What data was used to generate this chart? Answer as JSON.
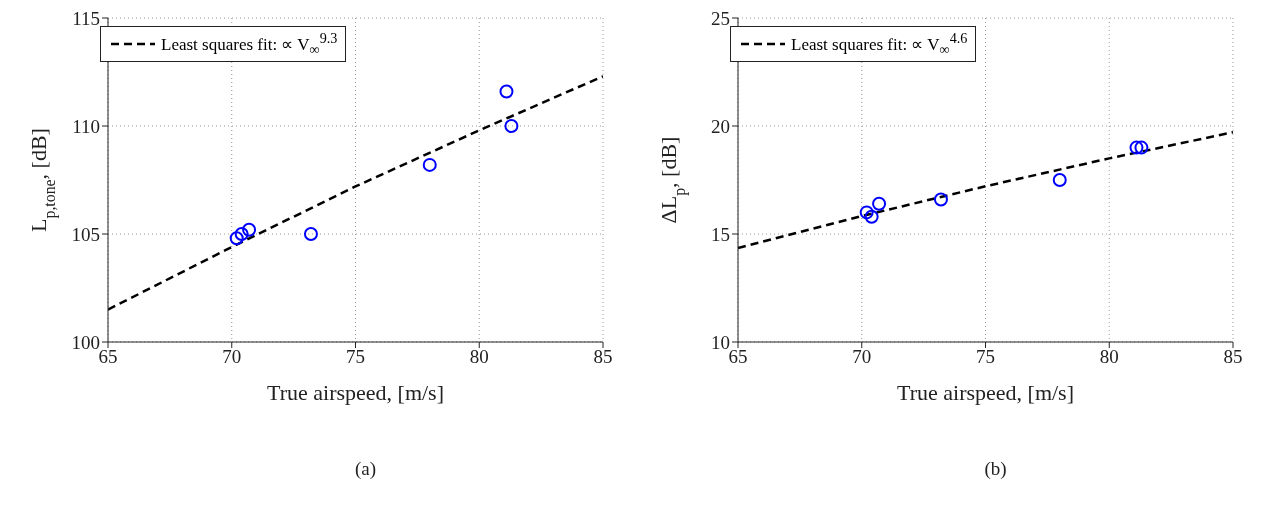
{
  "chart_data": [
    {
      "type": "scatter",
      "xlabel": "True airspeed, [m/s]",
      "ylabel": "L$_{p,tone}$, [dB]",
      "annotations": [
        "(a)"
      ],
      "xlim": [
        65,
        85
      ],
      "xticks": [
        65,
        70,
        75,
        80,
        85
      ],
      "ylim": [
        100,
        115
      ],
      "yticks": [
        100,
        105,
        110,
        115
      ],
      "grid": true,
      "legend": "top left",
      "series": [
        {
          "color": "#0000ff",
          "marker": "circle",
          "x": [
            70.2,
            70.4,
            70.7,
            73.2,
            78.0,
            81.1,
            81.3
          ],
          "values": [
            104.8,
            105.0,
            105.2,
            105.0,
            108.2,
            111.6,
            110.0
          ]
        },
        {
          "type": "line",
          "name": "Least squares fit: ∝ V$_{∞}$$^{9.3}$",
          "color": "#000000",
          "marker": "none",
          "line_style": "dashed",
          "x": [
            65,
            70,
            75,
            80,
            85
          ],
          "values": [
            101.5,
            104.4,
            107.2,
            109.8,
            112.3
          ]
        }
      ]
    },
    {
      "type": "scatter",
      "xlabel": "True airspeed, [m/s]",
      "ylabel": "ΔL$_{p}$, [dB]",
      "annotations": [
        "(b)"
      ],
      "xlim": [
        65,
        85
      ],
      "xticks": [
        65,
        70,
        75,
        80,
        85
      ],
      "ylim": [
        10,
        25
      ],
      "yticks": [
        10,
        15,
        20,
        25
      ],
      "grid": true,
      "legend": "top left",
      "series": [
        {
          "color": "#0000ff",
          "marker": "circle",
          "x": [
            70.2,
            70.4,
            70.7,
            73.2,
            78.0,
            81.1,
            81.3
          ],
          "values": [
            16.0,
            15.8,
            16.4,
            16.6,
            17.5,
            19.0,
            19.0
          ]
        },
        {
          "type": "line",
          "name": "Least squares fit: ∝ V$_{∞}$$^{4.6}$",
          "color": "#000000",
          "marker": "none",
          "line_style": "dashed",
          "x": [
            65,
            70,
            75,
            80,
            85
          ],
          "values": [
            14.35,
            15.83,
            17.21,
            18.5,
            19.71
          ]
        }
      ]
    }
  ]
}
